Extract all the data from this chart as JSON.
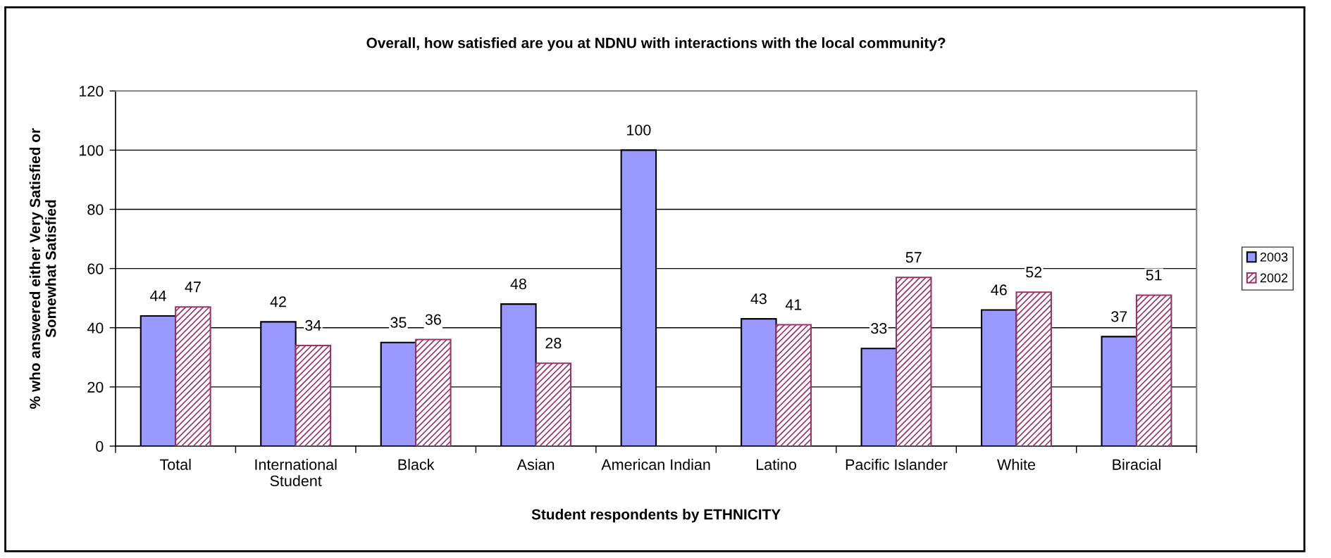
{
  "chart_data": {
    "type": "bar",
    "title": "Overall, how satisfied are you at NDNU with interactions with the local community?",
    "xlabel": "Student respondents by ETHNICITY",
    "ylabel": "% who answered either Very Satisfied or\nSomewhat Satisfied",
    "categories": [
      "Total",
      "International\nStudent",
      "Black",
      "Asian",
      "American Indian",
      "Latino",
      "Pacific Islander",
      "White",
      "Biracial"
    ],
    "series": [
      {
        "name": "2003",
        "color": "#9999ff",
        "values": [
          44,
          42,
          35,
          48,
          100,
          43,
          33,
          46,
          37
        ]
      },
      {
        "name": "2002",
        "color": "#993366",
        "values": [
          47,
          34,
          36,
          28,
          null,
          41,
          57,
          52,
          51
        ]
      }
    ],
    "ylim": [
      0,
      120
    ],
    "yticks": [
      0,
      20,
      40,
      60,
      80,
      100,
      120
    ],
    "grid": "y",
    "legend": "right",
    "data_labels": true
  }
}
